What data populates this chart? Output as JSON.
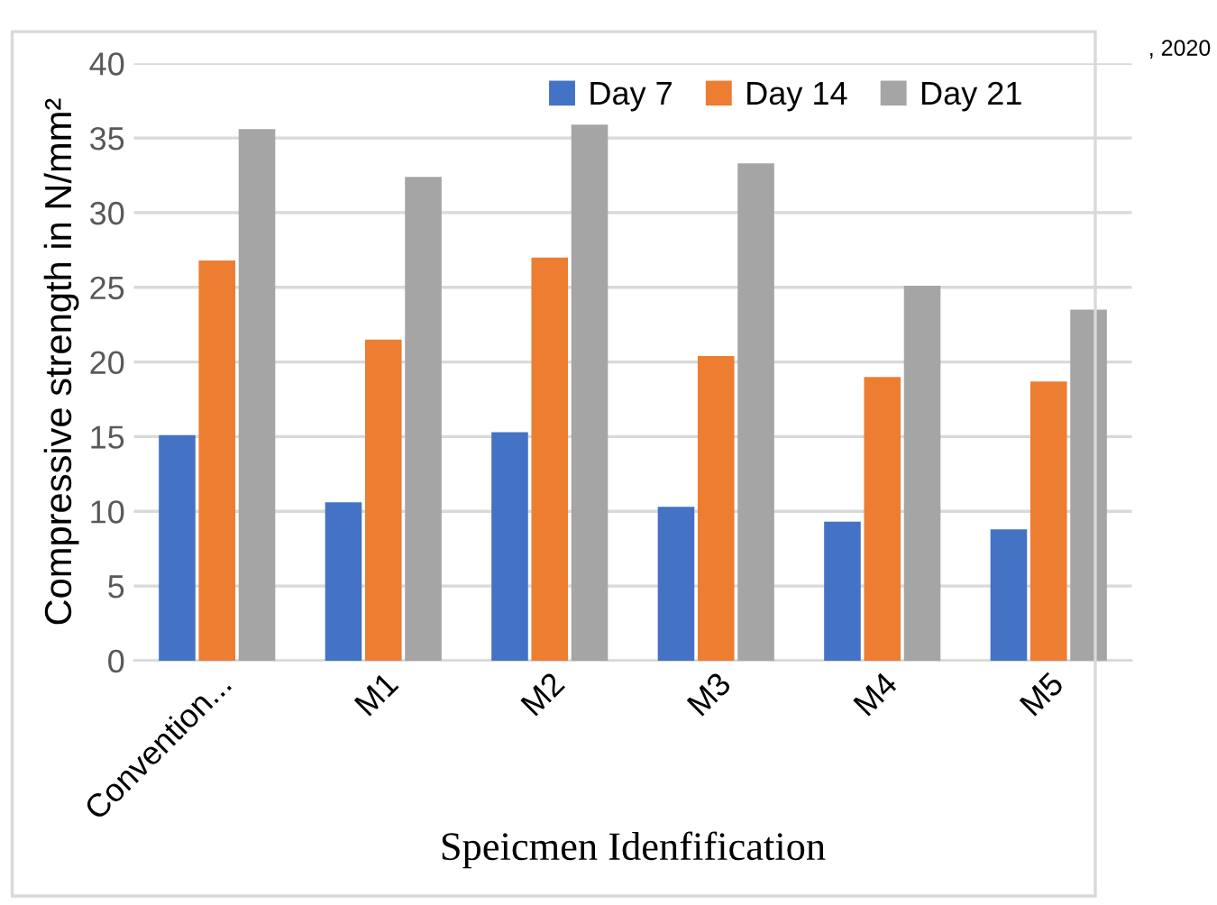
{
  "chart_data": {
    "type": "bar",
    "xlabel": "Speicmen Idenfification",
    "ylabel": "Compressive strength in N/mm²",
    "categories": [
      "Convention...",
      "M1",
      "M2",
      "M3",
      "M4",
      "M5"
    ],
    "series": [
      {
        "name": "Day 7",
        "color": "#4472c4",
        "values": [
          15.1,
          10.6,
          15.3,
          10.3,
          9.3,
          8.8
        ]
      },
      {
        "name": "Day 14",
        "color": "#ed7d31",
        "values": [
          26.8,
          21.5,
          27.0,
          20.4,
          19.0,
          18.7
        ]
      },
      {
        "name": "Day 21",
        "color": "#a5a5a5",
        "values": [
          35.6,
          32.4,
          35.9,
          33.3,
          25.1,
          23.5
        ]
      }
    ],
    "ylim": [
      0,
      40
    ],
    "yticks": [
      0,
      5,
      10,
      15,
      20,
      25,
      30,
      35,
      40
    ],
    "grid": "y",
    "legend": "top right",
    "annotations": [
      ", 2020"
    ]
  }
}
